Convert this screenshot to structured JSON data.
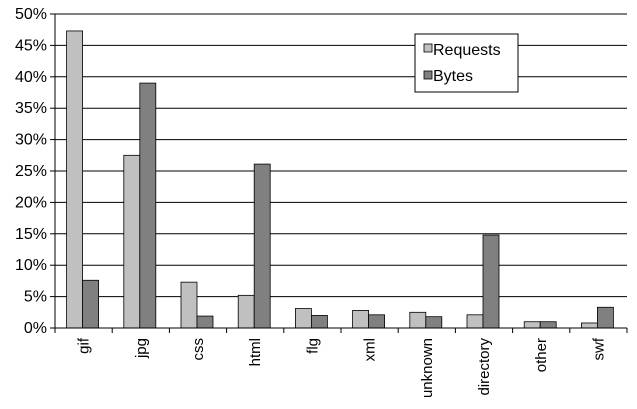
{
  "chart_data": {
    "type": "bar",
    "categories": [
      "gif",
      "jpg",
      "css",
      "html",
      "flg",
      "xml",
      "unknown",
      "directory",
      "other",
      "swf"
    ],
    "series": [
      {
        "name": "Requests",
        "values": [
          47.3,
          27.5,
          7.3,
          5.2,
          3.1,
          2.8,
          2.5,
          2.1,
          1.0,
          0.8
        ],
        "color": "#c0c0c0"
      },
      {
        "name": "Bytes",
        "values": [
          7.6,
          39.0,
          1.9,
          26.1,
          2.0,
          2.1,
          1.8,
          14.8,
          1.0,
          3.3
        ],
        "color": "#808080"
      }
    ],
    "ylim": [
      0,
      50
    ],
    "yticks": [
      "0%",
      "5%",
      "10%",
      "15%",
      "20%",
      "25%",
      "30%",
      "35%",
      "40%",
      "45%",
      "50%"
    ],
    "grid": true,
    "legend": "top-right",
    "title": "",
    "xlabel": "",
    "ylabel": ""
  }
}
